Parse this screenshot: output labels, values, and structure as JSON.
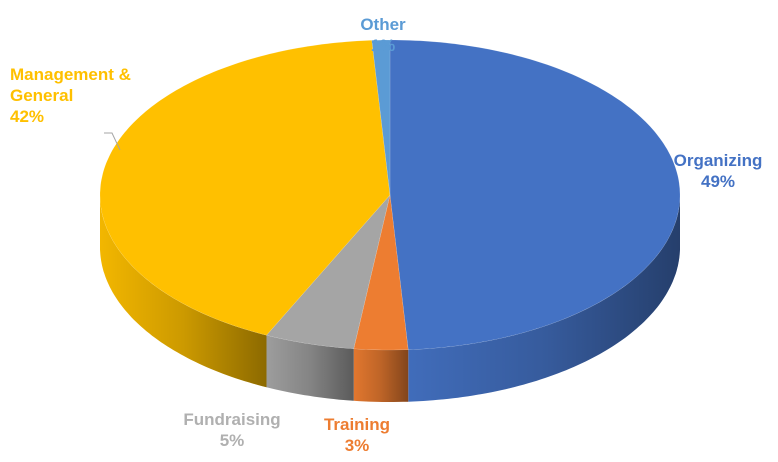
{
  "chart_data": {
    "type": "pie",
    "categories": [
      "Organizing",
      "Training",
      "Fundraising",
      "Management & General",
      "Other"
    ],
    "values": [
      49,
      3,
      5,
      42,
      1
    ],
    "value_labels": [
      "49%",
      "3%",
      "5%",
      "42%",
      "1%"
    ],
    "colors": [
      "#4472c4",
      "#ed7d31",
      "#a5a5a5",
      "#ffc000",
      "#5b9bd5"
    ]
  }
}
